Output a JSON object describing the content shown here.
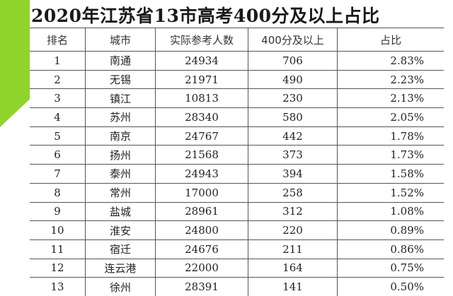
{
  "title": "2020年江苏省13市高考400分及以上占比",
  "accent_color": "#8fd42a",
  "table": {
    "headers": [
      "排名",
      "城市",
      "实际参考人数",
      "400分及以上",
      "占比"
    ],
    "rows": [
      [
        "1",
        "南通",
        "24934",
        "706",
        "2.83%"
      ],
      [
        "2",
        "无锡",
        "21971",
        "490",
        "2.23%"
      ],
      [
        "3",
        "镇江",
        "10813",
        "230",
        "2.13%"
      ],
      [
        "4",
        "苏州",
        "28340",
        "580",
        "2.05%"
      ],
      [
        "5",
        "南京",
        "24767",
        "442",
        "1.78%"
      ],
      [
        "6",
        "扬州",
        "21568",
        "373",
        "1.73%"
      ],
      [
        "7",
        "泰州",
        "24943",
        "394",
        "1.58%"
      ],
      [
        "8",
        "常州",
        "17000",
        "258",
        "1.52%"
      ],
      [
        "9",
        "盐城",
        "28961",
        "312",
        "1.08%"
      ],
      [
        "10",
        "淮安",
        "24800",
        "220",
        "0.89%"
      ],
      [
        "11",
        "宿迁",
        "24676",
        "211",
        "0.86%"
      ],
      [
        "12",
        "连云港",
        "22000",
        "164",
        "0.75%"
      ],
      [
        "13",
        "徐州",
        "28391",
        "141",
        "0.50%"
      ]
    ]
  }
}
